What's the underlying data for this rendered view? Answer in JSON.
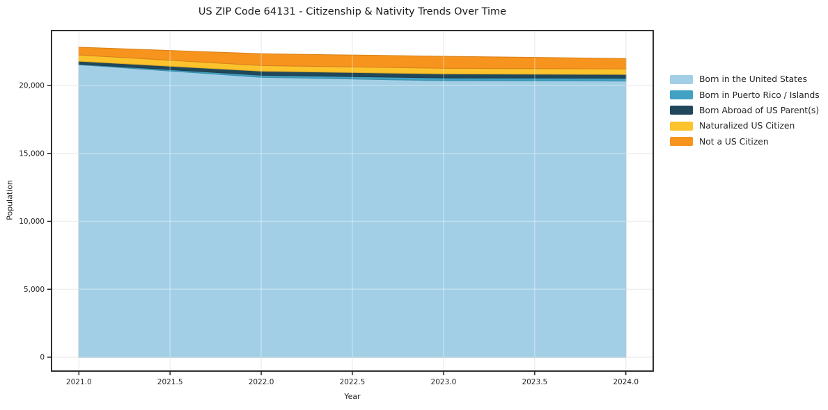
{
  "figure": {
    "title": "US ZIP Code 64131 - Citizenship & Nativity Trends Over Time",
    "xlabel": "Year",
    "ylabel": "Population"
  },
  "chart_data": {
    "type": "area",
    "stacked": true,
    "title": "US ZIP Code 64131 - Citizenship & Nativity Trends Over Time",
    "xlabel": "Year",
    "ylabel": "Population",
    "x": [
      2021,
      2022,
      2023,
      2024
    ],
    "series": [
      {
        "name": "Born in the United States",
        "color": "#a3cfe6",
        "values": [
          21520,
          20600,
          20350,
          20320
        ]
      },
      {
        "name": "Born in Puerto Rico / Islands",
        "color": "#41a2c3",
        "values": [
          50,
          150,
          200,
          205
        ]
      },
      {
        "name": "Born Abroad of US Parent(s)",
        "color": "#21485a",
        "values": [
          210,
          300,
          300,
          280
        ]
      },
      {
        "name": "Naturalized US Citizen",
        "color": "#fcc32d",
        "values": [
          460,
          410,
          410,
          410
        ]
      },
      {
        "name": "Not a US Citizen",
        "color": "#f7941e",
        "values": [
          570,
          870,
          880,
          760
        ]
      }
    ],
    "totals": [
      22810,
      22330,
      22140,
      21975
    ],
    "xticks": {
      "values": [
        2021.0,
        2021.5,
        2022.0,
        2022.5,
        2023.0,
        2023.5,
        2024.0
      ],
      "labels": [
        "2021.0",
        "2021.5",
        "2022.0",
        "2022.5",
        "2023.0",
        "2023.5",
        "2024.0"
      ]
    },
    "yticks": {
      "values": [
        0,
        5000,
        10000,
        15000,
        20000
      ],
      "labels": [
        "0",
        "5,000",
        "10,000",
        "15,000",
        "20,000"
      ]
    },
    "xlim": [
      2020.85,
      2024.15
    ],
    "ylim": [
      -1023,
      24035
    ],
    "grid": true,
    "legend_position": "right",
    "colors": {
      "spine": "#1a1a1a",
      "grid": "#ececec",
      "tick_label": "#262626",
      "background": "#ffffff"
    }
  }
}
